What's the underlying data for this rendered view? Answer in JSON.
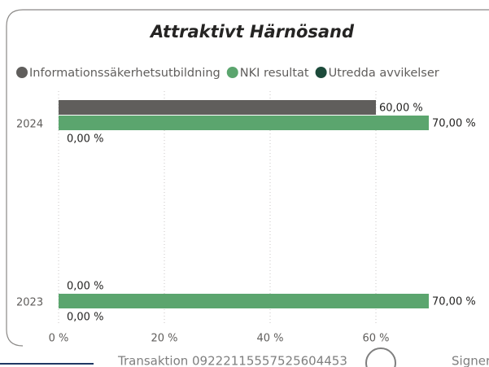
{
  "chart_data": {
    "type": "bar",
    "orientation": "horizontal",
    "title": "Attraktivt Härnösand",
    "categories": [
      "2024",
      "2023"
    ],
    "series": [
      {
        "name": "Informationssäkerhetsutbildning",
        "color": "#605e5c",
        "values": [
          60,
          0
        ],
        "value_labels": [
          "60,00 %",
          "0,00 %"
        ]
      },
      {
        "name": "NKI resultat",
        "color": "#5ba56e",
        "values": [
          70,
          70
        ],
        "value_labels": [
          "70,00 %",
          "70,00 %"
        ]
      },
      {
        "name": "Utredda avvikelser",
        "color": "#1c4a3a",
        "values": [
          0,
          0
        ],
        "value_labels": [
          "0,00 %",
          "0,00 %"
        ]
      }
    ],
    "xlim": [
      0,
      80
    ],
    "xticks": [
      {
        "value": 0,
        "label": "0 %"
      },
      {
        "value": 20,
        "label": "20 %"
      },
      {
        "value": 40,
        "label": "40 %"
      },
      {
        "value": 60,
        "label": "60 %"
      }
    ],
    "grid": true,
    "legend": "top-left"
  },
  "footer": {
    "transaction": "Transaktion 09222115557525604453",
    "signed": "Signerat EQ"
  }
}
